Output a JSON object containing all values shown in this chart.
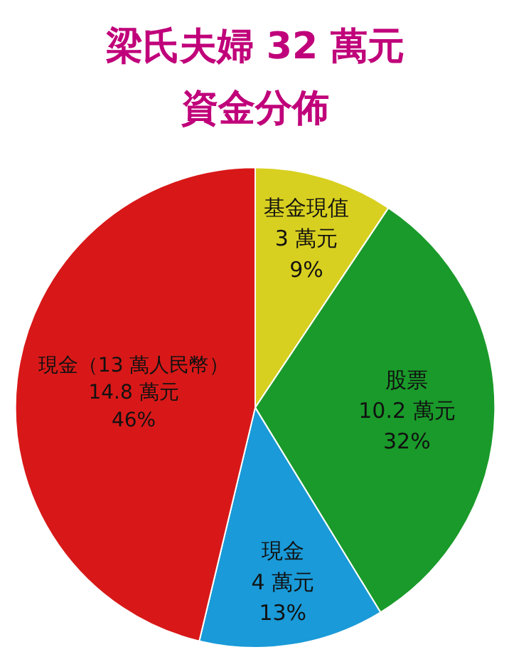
{
  "chart_data": {
    "type": "pie",
    "title": "梁氏夫婦 32 萬元",
    "subtitle": "資金分佈",
    "categories": [
      "基金現值",
      "股票",
      "現金",
      "現金（13 萬人民幣）"
    ],
    "values": [
      3,
      10.2,
      4,
      14.8
    ],
    "value_labels": [
      "3 萬元\n9%",
      "10.2 萬元\n32%",
      "4 萬元\n13%",
      "14.8 萬元\n46%"
    ],
    "colors": [
      "#d8d020",
      "#1a9a2a",
      "#1a9ad8",
      "#d81818"
    ]
  }
}
